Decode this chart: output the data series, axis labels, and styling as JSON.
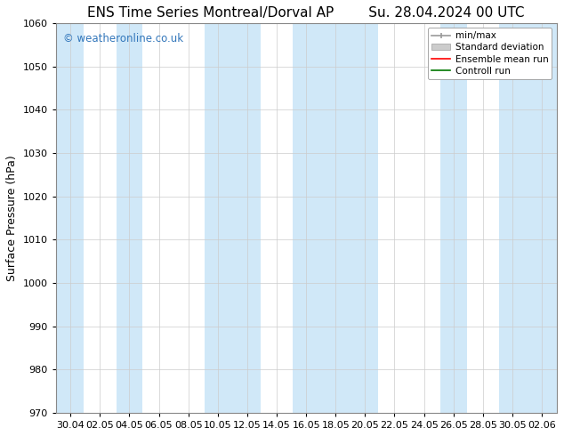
{
  "title_left": "ENS Time Series Montreal/Dorval AP",
  "title_right": "Su. 28.04.2024 00 UTC",
  "ylabel": "Surface Pressure (hPa)",
  "ylim": [
    970,
    1060
  ],
  "yticks": [
    970,
    980,
    990,
    1000,
    1010,
    1020,
    1030,
    1040,
    1050,
    1060
  ],
  "xtick_labels": [
    "30.04",
    "02.05",
    "04.05",
    "06.05",
    "08.05",
    "10.05",
    "12.05",
    "14.05",
    "16.05",
    "18.05",
    "20.05",
    "22.05",
    "24.05",
    "26.05",
    "28.05",
    "30.05",
    "02.06"
  ],
  "watermark": "© weatheronline.co.uk",
  "watermark_color": "#3377bb",
  "background_color": "#ffffff",
  "plot_bg_color": "#ffffff",
  "shaded_band_color": "#d0e8f8",
  "shaded_band_alpha": 1.0,
  "legend_labels": [
    "min/max",
    "Standard deviation",
    "Ensemble mean run",
    "Controll run"
  ],
  "legend_colors_line": [
    "#999999",
    "#cccccc",
    "#ff0000",
    "#007700"
  ],
  "title_fontsize": 11,
  "axis_label_fontsize": 9,
  "tick_fontsize": 8,
  "shaded_intervals": [
    [
      -0.5,
      0.45
    ],
    [
      1.55,
      2.45
    ],
    [
      4.55,
      6.45
    ],
    [
      7.55,
      10.45
    ],
    [
      12.55,
      13.45
    ],
    [
      14.55,
      16.5
    ]
  ]
}
